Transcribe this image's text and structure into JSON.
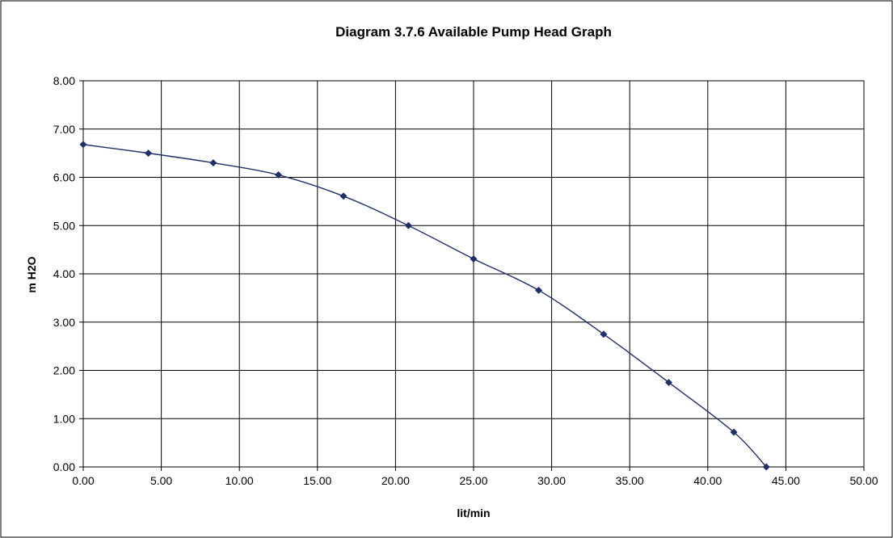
{
  "chart_data": {
    "type": "line",
    "title": "Diagram 3.7.6 Available Pump Head Graph",
    "xlabel": "lit/min",
    "ylabel": "m H2O",
    "xlim": [
      0,
      50
    ],
    "ylim": [
      0,
      8
    ],
    "x_ticks": [
      "0.00",
      "5.00",
      "10.00",
      "15.00",
      "20.00",
      "25.00",
      "30.00",
      "35.00",
      "40.00",
      "45.00",
      "50.00"
    ],
    "y_ticks": [
      "0.00",
      "1.00",
      "2.00",
      "3.00",
      "4.00",
      "5.00",
      "6.00",
      "7.00",
      "8.00"
    ],
    "grid": true,
    "legend": "none",
    "series_color": "#1f2f6b",
    "series": [
      {
        "x": [
          0.0,
          4.17,
          8.33,
          12.5,
          16.67,
          20.83,
          25.0,
          29.17,
          33.33,
          37.5,
          41.67,
          43.75
        ],
        "y": [
          6.68,
          6.5,
          6.3,
          6.05,
          5.61,
          5.0,
          4.31,
          3.66,
          2.75,
          1.75,
          0.72,
          0.0
        ]
      }
    ]
  }
}
